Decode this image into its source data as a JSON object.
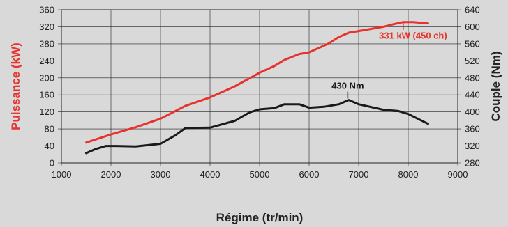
{
  "chart_data": {
    "type": "line",
    "xlabel": "Régime (tr/min)",
    "ylabel_left": "Puissance (kW)",
    "ylabel_right": "Couple (Nm)",
    "xlim": [
      1000,
      9000
    ],
    "xticks": [
      1000,
      2000,
      3000,
      4000,
      5000,
      6000,
      7000,
      8000,
      9000
    ],
    "ylim_left": [
      0,
      360
    ],
    "yticks_left": [
      0,
      40,
      80,
      120,
      160,
      200,
      240,
      280,
      320,
      360
    ],
    "ylim_right": [
      280,
      640
    ],
    "yticks_right": [
      280,
      320,
      360,
      400,
      440,
      480,
      520,
      560,
      600,
      640
    ],
    "grid": true,
    "series": [
      {
        "axis": "left",
        "color": "#e8322d",
        "points": [
          [
            1500,
            48
          ],
          [
            2000,
            67
          ],
          [
            2500,
            84
          ],
          [
            3000,
            104
          ],
          [
            3500,
            134
          ],
          [
            4000,
            154
          ],
          [
            4500,
            180
          ],
          [
            5000,
            212
          ],
          [
            5300,
            228
          ],
          [
            5500,
            242
          ],
          [
            5800,
            256
          ],
          [
            6000,
            260
          ],
          [
            6400,
            281
          ],
          [
            6600,
            296
          ],
          [
            6800,
            306
          ],
          [
            7000,
            310
          ],
          [
            7500,
            320
          ],
          [
            7700,
            326
          ],
          [
            7900,
            331
          ],
          [
            8100,
            331
          ],
          [
            8400,
            328
          ]
        ]
      },
      {
        "axis": "right",
        "color": "#1a1a1a",
        "points": [
          [
            1500,
            303
          ],
          [
            1700,
            313
          ],
          [
            1900,
            320
          ],
          [
            2100,
            320
          ],
          [
            2500,
            319
          ],
          [
            3000,
            325
          ],
          [
            3300,
            345
          ],
          [
            3500,
            362
          ],
          [
            4000,
            363
          ],
          [
            4500,
            379
          ],
          [
            4800,
            399
          ],
          [
            5000,
            406
          ],
          [
            5300,
            409
          ],
          [
            5500,
            418
          ],
          [
            5800,
            418
          ],
          [
            6000,
            410
          ],
          [
            6300,
            412
          ],
          [
            6600,
            418
          ],
          [
            6800,
            428
          ],
          [
            7000,
            418
          ],
          [
            7500,
            405
          ],
          [
            7800,
            402
          ],
          [
            8000,
            395
          ],
          [
            8400,
            372
          ]
        ]
      }
    ],
    "annotations": [
      {
        "text": "331 kW (450 ch)",
        "color": "#e8322d"
      },
      {
        "text": "430 Nm",
        "color": "#1a1a1a"
      }
    ]
  }
}
